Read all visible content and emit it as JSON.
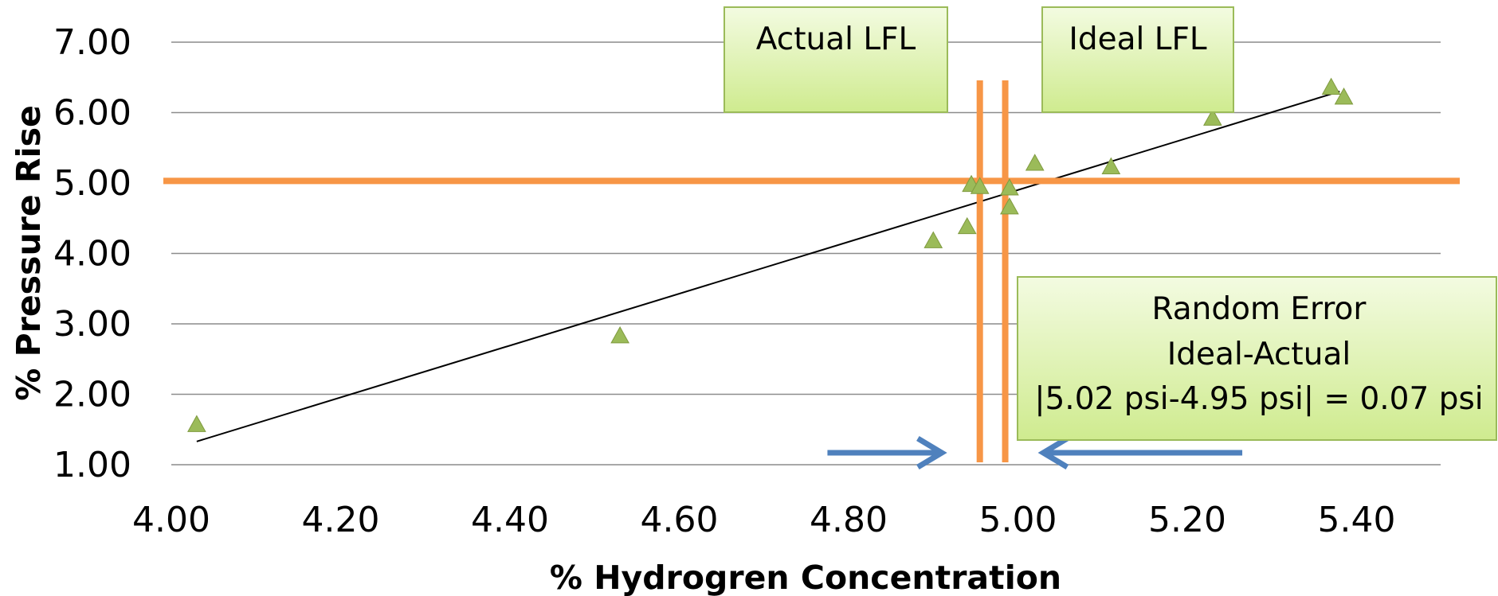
{
  "chart_data": {
    "type": "scatter",
    "title": "",
    "xlabel": "% Hydrogren Concentration",
    "ylabel": "% Pressure Rise",
    "xlim": [
      4.0,
      5.5
    ],
    "ylim": [
      1.0,
      7.0
    ],
    "x_ticks": [
      "4.00",
      "4.20",
      "4.40",
      "4.60",
      "4.80",
      "5.00",
      "5.20",
      "5.40"
    ],
    "y_ticks": [
      "1.00",
      "2.00",
      "3.00",
      "4.00",
      "5.00",
      "6.00",
      "7.00"
    ],
    "grid": "horizontal",
    "marker": "triangle",
    "marker_color": "#9bbb59",
    "points": [
      {
        "x": 4.03,
        "y": 1.57
      },
      {
        "x": 4.53,
        "y": 2.83
      },
      {
        "x": 4.9,
        "y": 4.18
      },
      {
        "x": 4.94,
        "y": 4.38
      },
      {
        "x": 4.945,
        "y": 4.98
      },
      {
        "x": 4.955,
        "y": 4.95
      },
      {
        "x": 4.99,
        "y": 4.93
      },
      {
        "x": 4.99,
        "y": 4.66
      },
      {
        "x": 5.02,
        "y": 5.28
      },
      {
        "x": 5.11,
        "y": 5.23
      },
      {
        "x": 5.23,
        "y": 5.92
      },
      {
        "x": 5.37,
        "y": 6.36
      },
      {
        "x": 5.385,
        "y": 6.22
      }
    ],
    "trendline": {
      "x": [
        4.03,
        5.38
      ],
      "y": [
        1.33,
        6.3
      ],
      "color": "#000000"
    },
    "reference_lines": {
      "color": "#f79646",
      "horizontal_y": 5.03,
      "vertical_x": [
        4.955,
        4.985
      ]
    },
    "arrow_color": "#4f81bd",
    "arrows": [
      {
        "from_x": 4.775,
        "to_x": 4.91,
        "y": 1.17
      },
      {
        "from_x": 5.265,
        "to_x": 5.03,
        "y": 1.17
      }
    ],
    "annotations": {
      "actual_lfl": "Actual LFL",
      "ideal_lfl": "Ideal LFL",
      "random_error_title": "Random Error",
      "random_error_sub": "Ideal-Actual",
      "random_error_calc": "|5.02 psi-4.95 psi| = 0.07 psi"
    },
    "callout_fill": "#e6f5c4",
    "callout_border": "#9bbb59"
  }
}
